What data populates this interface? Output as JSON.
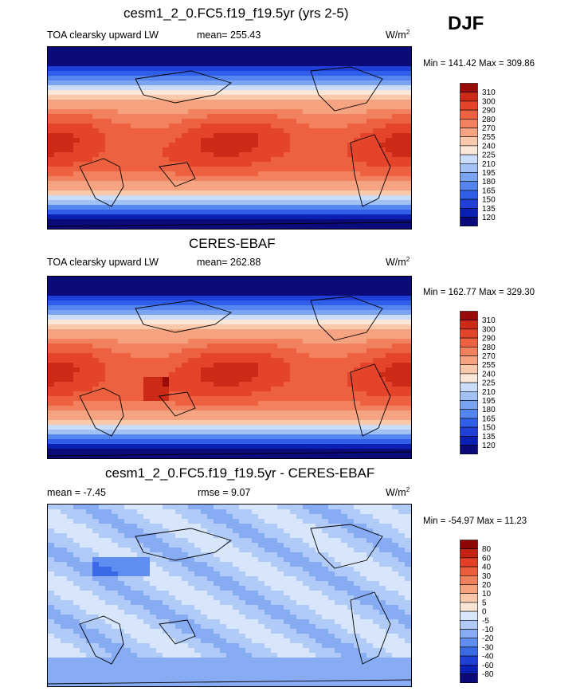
{
  "season": "DJF",
  "palette_abs": [
    "#0a0a7a",
    "#0a1fb4",
    "#1f3fd6",
    "#2f5fe8",
    "#5585ee",
    "#7aa3f2",
    "#a2c2f6",
    "#c9dcf9",
    "#fbe7d8",
    "#f9c9ac",
    "#f6a381",
    "#f2825f",
    "#ed6140",
    "#e4452a",
    "#cc2a17",
    "#9a0a08"
  ],
  "palette_diff": [
    "#0a0a7a",
    "#0a1fb4",
    "#1f3fd6",
    "#3a6ae6",
    "#5f8ef0",
    "#88acf4",
    "#b0cbf7",
    "#d8e6fb",
    "#fbe5d6",
    "#f9c7aa",
    "#f6a27f",
    "#f1805d",
    "#ec5d3c",
    "#e23f25",
    "#c32312",
    "#8e0605"
  ],
  "panels": [
    {
      "title": "cesm1_2_0.FC5.f19_f19.5yr (yrs 2-5)",
      "variable": "TOA clearsky upward LW",
      "stat_text": "mean= 255.43",
      "units": "W/m",
      "units_sup": "2",
      "minmax": "Min = 141.42 Max = 309.86",
      "levels": [
        "310",
        "300",
        "290",
        "280",
        "270",
        "255",
        "240",
        "225",
        "210",
        "195",
        "180",
        "165",
        "150",
        "135",
        "120"
      ],
      "kind": "abs"
    },
    {
      "title": "CERES-EBAF",
      "variable": "TOA clearsky upward LW",
      "stat_text": "mean= 262.88",
      "units": "W/m",
      "units_sup": "2",
      "minmax": "Min = 162.77 Max = 329.30",
      "levels": [
        "310",
        "300",
        "290",
        "280",
        "270",
        "255",
        "240",
        "225",
        "210",
        "195",
        "180",
        "165",
        "150",
        "135",
        "120"
      ],
      "kind": "abs"
    },
    {
      "title": "cesm1_2_0.FC5.f19_f19.5yr - CERES-EBAF",
      "variable": "mean =  -7.45",
      "stat_text": "rmse =   9.07",
      "units": "W/m",
      "units_sup": "2",
      "minmax": "Min = -54.97 Max =  11.23",
      "levels": [
        "80",
        "60",
        "40",
        "30",
        "20",
        "10",
        "5",
        "0",
        "-5",
        "-10",
        "-20",
        "-30",
        "-40",
        "-60",
        "-80"
      ],
      "kind": "diff"
    }
  ]
}
